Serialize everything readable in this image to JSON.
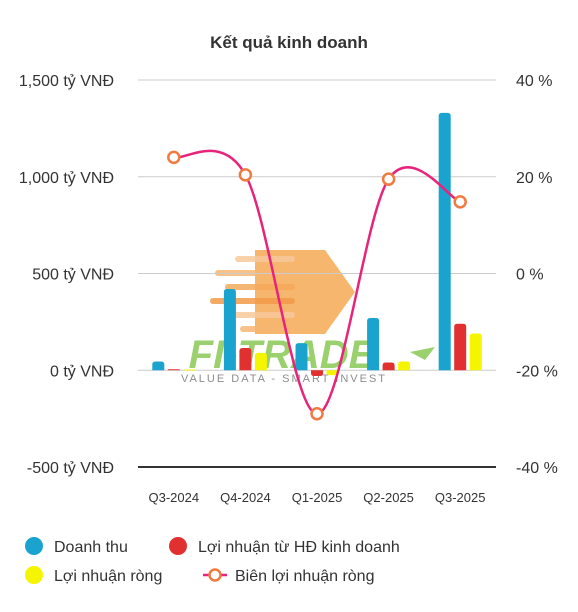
{
  "chart_data": {
    "type": "bar",
    "title": "Kết quả kinh doanh",
    "categories": [
      "Q3-2024",
      "Q4-2024",
      "Q1-2025",
      "Q2-2025",
      "Q3-2025"
    ],
    "y_left": {
      "ylim": [
        -500,
        1500
      ],
      "ticks": [
        -500,
        0,
        500,
        1000,
        1500
      ],
      "tick_labels": [
        "-500 tỷ VNĐ",
        "0 tỷ VNĐ",
        "500 tỷ VNĐ",
        "1,000 tỷ VNĐ",
        "1,500 tỷ VNĐ"
      ]
    },
    "y_right": {
      "ylim": [
        -40,
        40
      ],
      "ticks": [
        -40,
        -20,
        0,
        20,
        40
      ],
      "tick_labels": [
        "-40 %",
        "-20 %",
        "0 %",
        "20 %",
        "40 %"
      ]
    },
    "series": [
      {
        "name": "Doanh thu",
        "kind": "bar",
        "axis": "left",
        "color": "#1aa3cf",
        "values": [
          45,
          420,
          140,
          270,
          1330
        ]
      },
      {
        "name": "Lợi nhuận từ HĐ kinh doanh",
        "kind": "bar",
        "axis": "left",
        "color": "#e03030",
        "values": [
          5,
          115,
          -30,
          40,
          240
        ]
      },
      {
        "name": "Lợi nhuận ròng",
        "kind": "bar",
        "axis": "left",
        "color": "#f5f500",
        "values": [
          4,
          90,
          -25,
          45,
          190
        ]
      },
      {
        "name": "Biên lợi nhuận ròng",
        "kind": "line",
        "axis": "right",
        "color": "#e8247a",
        "marker_color": "#f07a40",
        "values": [
          24,
          20.4,
          -29,
          19.5,
          14.8
        ]
      }
    ],
    "grid": true,
    "legend_position": "bottom-left"
  },
  "watermark": {
    "brand": "FI-TRADE",
    "tagline": "VALUE DATA - SMART INVEST"
  }
}
